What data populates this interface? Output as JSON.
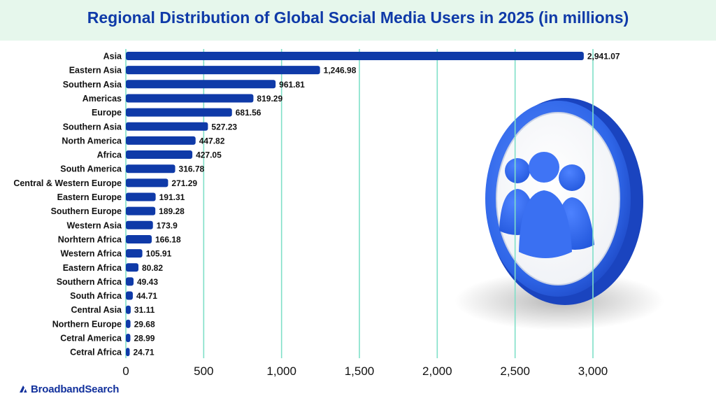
{
  "chart_data": {
    "type": "bar",
    "orientation": "horizontal",
    "title": "Regional Distribution of Global Social Media Users in 2025 (in millions)",
    "xlabel": "",
    "ylabel": "",
    "xlim": [
      0,
      3000
    ],
    "xticks": [
      0,
      500,
      1000,
      1500,
      2000,
      2500,
      3000
    ],
    "xtick_labels": [
      "0",
      "500",
      "1,000",
      "1,500",
      "2,000",
      "2,500",
      "3,000"
    ],
    "grid": "vertical",
    "bar_color": "#0f3aa8",
    "grid_color": "#7fe0c8",
    "categories": [
      "Asia",
      "Eastern Asia",
      "Southern Asia",
      "Americas",
      "Europe",
      "Southern Asia",
      "North America",
      "Africa",
      "South America",
      "Central & Western Europe",
      "Eastern Europe",
      "Southern Europe",
      "Western Asia",
      "Norhtern Africa",
      "Western Africa",
      "Eastern Africa",
      "Southern Africa",
      "South Africa",
      "Central Asia",
      "Northern Europe",
      "Cetral America",
      "Cetral Africa"
    ],
    "values": [
      2941.07,
      1246.98,
      961.81,
      819.29,
      681.56,
      527.23,
      447.82,
      427.05,
      316.78,
      271.29,
      191.31,
      189.28,
      173.9,
      166.18,
      105.91,
      80.82,
      49.43,
      44.71,
      31.11,
      29.68,
      28.99,
      24.71
    ],
    "value_labels": [
      "2,941.07",
      "1,246.98",
      "961.81",
      "819.29",
      "681.56",
      "527.23",
      "447.82",
      "427.05",
      "316.78",
      "271.29",
      "191.31",
      "189.28",
      "173.9",
      "166.18",
      "105.91",
      "80.82",
      "49.43",
      "44.71",
      "31.11",
      "29.68",
      "28.99",
      "24.71"
    ]
  },
  "brand": {
    "name": "BroadbandSearch",
    "color": "#12319c"
  },
  "decoration": {
    "icon": "users-group-icon",
    "accent": "#2f66e8"
  }
}
